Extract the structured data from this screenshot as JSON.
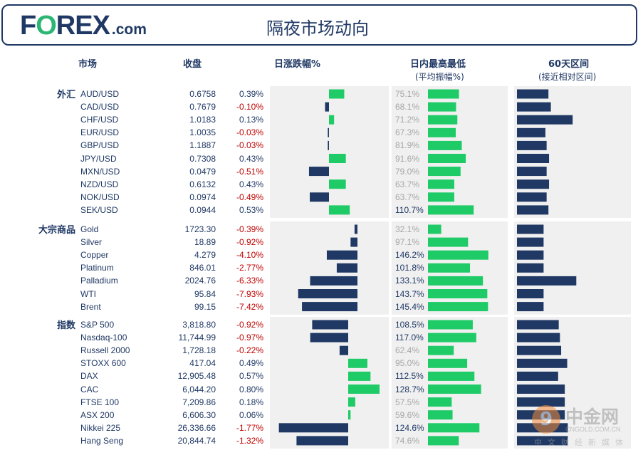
{
  "header": {
    "logo_main": "F",
    "logo_o": "O",
    "logo_rest": "REX",
    "logo_domain": ".com",
    "title": "隔夜市场动向"
  },
  "columns": {
    "market": "市场",
    "close": "收盘",
    "daily_change": "日涨跌幅%",
    "intraday": "日内最高最低",
    "intraday_sub": "(平均振幅%)",
    "range60": "60天区间",
    "range60_sub": "(接近相对区间)"
  },
  "colors": {
    "navy": "#1f3864",
    "green": "#1ecb66",
    "red": "#c00000",
    "panel": "#f0f0f0",
    "grey_text": "#a6a6a6"
  },
  "chart_data": {
    "type": "table",
    "groups": [
      {
        "name": "外汇",
        "rows": [
          {
            "name": "AUD/USD",
            "close": "0.6758",
            "change": "0.39%",
            "change_value": 0.39,
            "intraday": "75.1%",
            "intraday_value": 75.1,
            "range60": 0.48
          },
          {
            "name": "CAD/USD",
            "close": "0.7679",
            "change": "-0.10%",
            "change_value": -0.1,
            "intraday": "68.1%",
            "intraday_value": 68.1,
            "range60": 0.44
          },
          {
            "name": "CHF/USD",
            "close": "1.0183",
            "change": "0.13%",
            "change_value": 0.13,
            "intraday": "71.2%",
            "intraday_value": 71.2,
            "range60": 0.08
          },
          {
            "name": "EUR/USD",
            "close": "1.0035",
            "change": "-0.03%",
            "change_value": -0.03,
            "intraday": "67.3%",
            "intraday_value": 67.3,
            "range60": 0.53
          },
          {
            "name": "GBP/USD",
            "close": "1.1887",
            "change": "-0.03%",
            "change_value": -0.03,
            "intraday": "81.9%",
            "intraday_value": 81.9,
            "range60": 0.51
          },
          {
            "name": "JPY/USD",
            "close": "0.7308",
            "change": "0.43%",
            "change_value": 0.43,
            "intraday": "91.6%",
            "intraday_value": 91.6,
            "range60": 0.47
          },
          {
            "name": "MXN/USD",
            "close": "0.0479",
            "change": "-0.51%",
            "change_value": -0.51,
            "intraday": "79.0%",
            "intraday_value": 79.0,
            "range60": 0.51
          },
          {
            "name": "NZD/USD",
            "close": "0.6132",
            "change": "0.43%",
            "change_value": 0.43,
            "intraday": "63.7%",
            "intraday_value": 63.7,
            "range60": 0.47
          },
          {
            "name": "NOK/USD",
            "close": "0.0974",
            "change": "-0.49%",
            "change_value": -0.49,
            "intraday": "63.7%",
            "intraday_value": 63.7,
            "range60": 0.51
          },
          {
            "name": "SEK/USD",
            "close": "0.0944",
            "change": "0.53%",
            "change_value": 0.53,
            "intraday": "110.7%",
            "intraday_value": 110.7,
            "range60": 0.48
          }
        ]
      },
      {
        "name": "大宗商品",
        "rows": [
          {
            "name": "Gold",
            "close": "1723.30",
            "change": "-0.39%",
            "change_value": -0.39,
            "intraday": "32.1%",
            "intraday_value": 32.1,
            "range60": 0.56
          },
          {
            "name": "Silver",
            "close": "18.89",
            "change": "-0.92%",
            "change_value": -0.92,
            "intraday": "97.1%",
            "intraday_value": 97.1,
            "range60": 0.56
          },
          {
            "name": "Copper",
            "close": "4.279",
            "change": "-4.10%",
            "change_value": -4.1,
            "intraday": "146.2%",
            "intraday_value": 146.2,
            "range60": 0.56
          },
          {
            "name": "Platinum",
            "close": "846.01",
            "change": "-2.77%",
            "change_value": -2.77,
            "intraday": "101.8%",
            "intraday_value": 101.8,
            "range60": 0.56
          },
          {
            "name": "Palladium",
            "close": "2024.76",
            "change": "-6.33%",
            "change_value": -6.33,
            "intraday": "133.1%",
            "intraday_value": 133.1,
            "range60": 0.02
          },
          {
            "name": "WTI",
            "close": "95.84",
            "change": "-7.93%",
            "change_value": -7.93,
            "intraday": "143.7%",
            "intraday_value": 143.7,
            "range60": 0.56
          },
          {
            "name": "Brent",
            "close": "99.15",
            "change": "-7.42%",
            "change_value": -7.42,
            "intraday": "145.4%",
            "intraday_value": 145.4,
            "range60": 0.56
          }
        ]
      },
      {
        "name": "指数",
        "rows": [
          {
            "name": "S&P 500",
            "close": "3,818.80",
            "change": "-0.92%",
            "change_value": -0.92,
            "intraday": "108.5%",
            "intraday_value": 108.5,
            "range60": 0.31
          },
          {
            "name": "Nasdaq-100",
            "close": "11,744.99",
            "change": "-0.97%",
            "change_value": -0.97,
            "intraday": "117.0%",
            "intraday_value": 117.0,
            "range60": 0.29
          },
          {
            "name": "Russell 2000",
            "close": "1,728.18",
            "change": "-0.22%",
            "change_value": -0.22,
            "intraday": "62.4%",
            "intraday_value": 62.4,
            "range60": 0.27
          },
          {
            "name": "STOXX 600",
            "close": "417.04",
            "change": "0.49%",
            "change_value": 0.49,
            "intraday": "95.0%",
            "intraday_value": 95.0,
            "range60": 0.17
          },
          {
            "name": "DAX",
            "close": "12,905.48",
            "change": "0.57%",
            "change_value": 0.57,
            "intraday": "112.5%",
            "intraday_value": 112.5,
            "range60": 0.32
          },
          {
            "name": "CAC",
            "close": "6,044.20",
            "change": "0.80%",
            "change_value": 0.8,
            "intraday": "128.7%",
            "intraday_value": 128.7,
            "range60": 0.21
          },
          {
            "name": "FTSE 100",
            "close": "7,209.86",
            "change": "0.18%",
            "change_value": 0.18,
            "intraday": "57.5%",
            "intraday_value": 57.5,
            "range60": 0.21
          },
          {
            "name": "ASX 200",
            "close": "6,606.30",
            "change": "0.06%",
            "change_value": 0.06,
            "intraday": "59.6%",
            "intraday_value": 59.6,
            "range60": 0.21
          },
          {
            "name": "Nikkei 225",
            "close": "26,336.66",
            "change": "-1.77%",
            "change_value": -1.77,
            "intraday": "124.6%",
            "intraday_value": 124.6,
            "range60": 0.16
          },
          {
            "name": "Hang Seng",
            "close": "20,844.74",
            "change": "-1.32%",
            "change_value": -1.32,
            "intraday": "74.6%",
            "intraday_value": 74.6,
            "range60": 0.16
          }
        ]
      }
    ]
  },
  "watermark": {
    "badge": "9",
    "name": "中金网",
    "url": "CNGOLD.COM.CN",
    "subtitle": "中文财经新媒体"
  }
}
